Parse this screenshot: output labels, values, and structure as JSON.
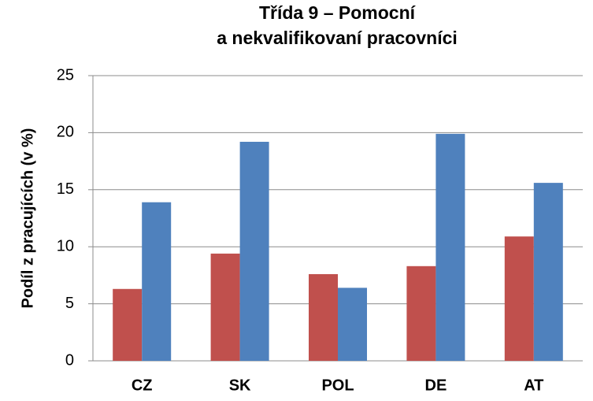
{
  "chart_data": {
    "type": "bar",
    "title": [
      "Třída 9 – Pomocní",
      "a nekvalifikovaní pracovníci"
    ],
    "y_label": "Podíl z pracujících (v %)",
    "categories": [
      "CZ",
      "SK",
      "POL",
      "DE",
      "AT"
    ],
    "series": [
      {
        "color": "#c0504d",
        "values": [
          6.3,
          9.4,
          7.6,
          8.3,
          10.9
        ]
      },
      {
        "color": "#4f81bd",
        "values": [
          13.9,
          19.2,
          6.4,
          19.9,
          15.6
        ]
      }
    ],
    "ylim": [
      0,
      25
    ],
    "yticks": [
      0,
      5,
      10,
      15,
      20,
      25
    ],
    "grid": true
  }
}
